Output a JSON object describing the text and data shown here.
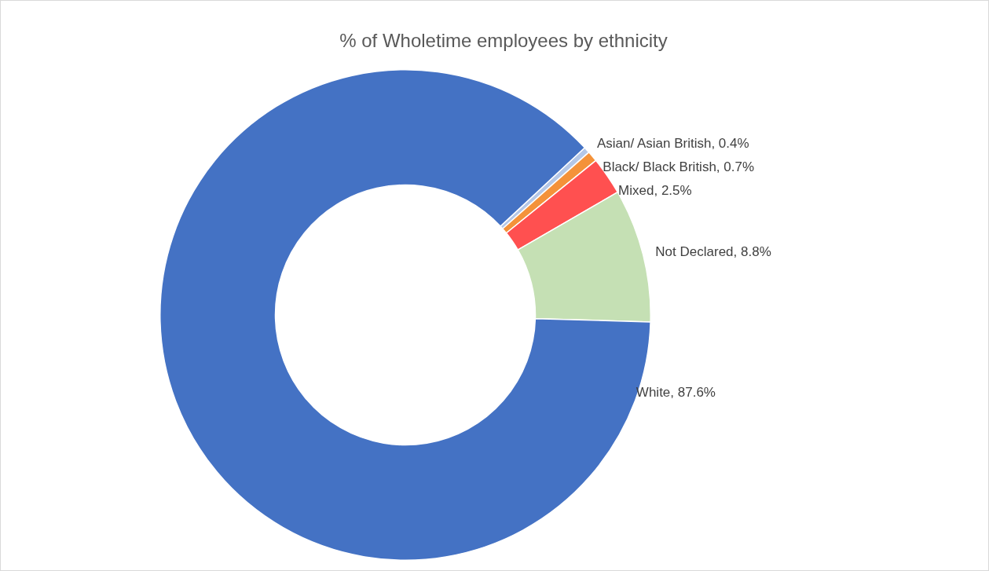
{
  "chart_data": {
    "type": "donut",
    "title": "% of Wholetime employees by ethnicity",
    "categories": [
      "Asian/ Asian British",
      "Black/ Black British",
      "Mixed",
      "Not Declared",
      "White"
    ],
    "values": [
      0.4,
      0.7,
      2.5,
      8.8,
      87.6
    ],
    "colors": [
      "#b4c7e7",
      "#f4923a",
      "#ff5050",
      "#c5e0b4",
      "#4472c4"
    ],
    "value_labels": [
      "0.4%",
      "0.7%",
      "2.5%",
      "8.8%",
      "87.6%"
    ],
    "legend": false
  }
}
